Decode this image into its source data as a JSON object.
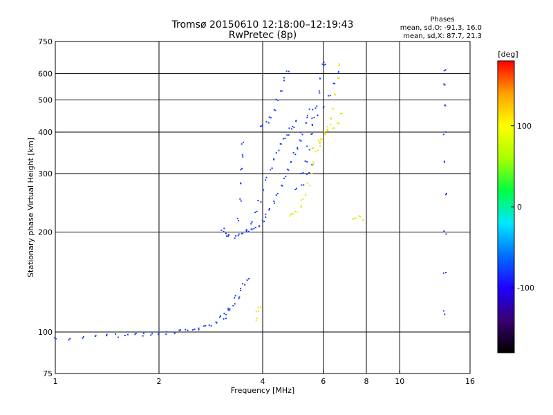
{
  "chart_data": {
    "type": "scatter",
    "title": "Tromsø 20150610 12:18:00–12:19:43",
    "subtitle": "RwPretec (8p)",
    "xlabel": "Frequency [MHz]",
    "ylabel": "Stationary phase Virtual Height [km]",
    "x_scale": "log",
    "y_scale": "log",
    "xlim": [
      1,
      16
    ],
    "ylim": [
      75,
      750
    ],
    "x_ticks": [
      1,
      2,
      4,
      6,
      8,
      10,
      16
    ],
    "x_tick_labels": [
      "1",
      "2",
      "4",
      "6",
      "8",
      "10",
      "16"
    ],
    "y_ticks": [
      75,
      100,
      200,
      300,
      400,
      500,
      600,
      750
    ],
    "y_tick_labels": [
      "75",
      "100",
      "200",
      "300",
      "400",
      "500",
      "600",
      "750"
    ],
    "x_gridlines": [
      2,
      4,
      6,
      8,
      10
    ],
    "y_gridlines": [
      100,
      200,
      300,
      400,
      500,
      600
    ],
    "grid": true,
    "phase_stats": {
      "heading": "Phases",
      "line1": "mean, sd,O: -91.3, 16.0",
      "line2": "mean, sd,X: 87.7, 21.3"
    },
    "colorbar": {
      "label": "[deg]",
      "range": [
        -180,
        180
      ],
      "ticks": [
        100,
        0,
        -100
      ],
      "tick_labels": [
        "100",
        "0",
        "-100"
      ],
      "colormap": [
        "#000000",
        "#3a0070",
        "#1e00ff",
        "#0070ff",
        "#00e8ff",
        "#00ff40",
        "#aaff00",
        "#ffff00",
        "#ffa000",
        "#ff0000"
      ]
    },
    "series": [
      {
        "color": "#1a3cff",
        "phase_deg": -100,
        "traces": [
          [
            [
              1.0,
              96
            ],
            [
              1.1,
              96
            ],
            [
              1.2,
              97
            ],
            [
              1.3,
              97
            ],
            [
              1.4,
              98
            ],
            [
              1.5,
              98
            ],
            [
              1.6,
              98
            ],
            [
              1.7,
              99
            ],
            [
              1.8,
              99
            ],
            [
              1.9,
              99
            ],
            [
              2.0,
              100
            ],
            [
              2.1,
              100
            ],
            [
              2.2,
              100
            ],
            [
              2.3,
              101
            ],
            [
              2.4,
              102
            ],
            [
              2.5,
              102
            ],
            [
              2.6,
              103
            ],
            [
              2.7,
              104
            ],
            [
              2.8,
              106
            ],
            [
              2.9,
              108
            ],
            [
              3.0,
              111
            ],
            [
              3.1,
              114
            ],
            [
              3.2,
              118
            ],
            [
              3.3,
              122
            ],
            [
              3.4,
              128
            ]
          ],
          [
            [
              3.05,
              205
            ],
            [
              3.1,
              200
            ],
            [
              3.15,
              197
            ],
            [
              3.2,
              195
            ],
            [
              3.3,
              194
            ],
            [
              3.4,
              196
            ],
            [
              3.5,
              198
            ],
            [
              3.6,
              200
            ],
            [
              3.7,
              203
            ],
            [
              3.8,
              207
            ],
            [
              3.9,
              211
            ],
            [
              4.0,
              217
            ],
            [
              4.1,
              225
            ],
            [
              4.2,
              235
            ],
            [
              4.3,
              248
            ],
            [
              4.4,
              262
            ],
            [
              4.5,
              278
            ],
            [
              4.6,
              295
            ],
            [
              4.7,
              312
            ],
            [
              4.8,
              330
            ],
            [
              4.9,
              345
            ],
            [
              5.0,
              360
            ],
            [
              5.1,
              380
            ],
            [
              5.2,
              400
            ],
            [
              5.3,
              425
            ],
            [
              5.4,
              445
            ],
            [
              5.5,
              470
            ]
          ],
          [
            [
              3.6,
              205
            ],
            [
              3.7,
              215
            ],
            [
              3.8,
              230
            ],
            [
              3.9,
              248
            ],
            [
              4.0,
              268
            ],
            [
              4.1,
              290
            ],
            [
              4.2,
              310
            ],
            [
              4.3,
              330
            ],
            [
              4.4,
              350
            ],
            [
              4.5,
              368
            ],
            [
              4.6,
              385
            ],
            [
              4.7,
              398
            ],
            [
              4.8,
              410
            ],
            [
              4.9,
              420
            ],
            [
              5.0,
              432
            ]
          ],
          [
            [
              3.9,
              420
            ],
            [
              4.0,
              422
            ],
            [
              4.1,
              430
            ],
            [
              4.2,
              445
            ],
            [
              4.3,
              470
            ],
            [
              4.4,
              500
            ],
            [
              4.5,
              540
            ],
            [
              4.6,
              580
            ],
            [
              4.7,
              610
            ]
          ],
          [
            [
              3.4,
              220
            ],
            [
              3.42,
              250
            ],
            [
              3.44,
              280
            ],
            [
              3.46,
              310
            ],
            [
              3.48,
              340
            ],
            [
              3.5,
              370
            ]
          ],
          [
            [
              5.2,
              300
            ],
            [
              5.3,
              330
            ],
            [
              5.4,
              360
            ],
            [
              5.5,
              400
            ],
            [
              5.6,
              440
            ],
            [
              5.7,
              480
            ],
            [
              5.8,
              530
            ],
            [
              5.9,
              580
            ],
            [
              6.0,
              640
            ],
            [
              6.05,
              650
            ]
          ],
          [
            [
              5.6,
              420
            ],
            [
              5.8,
              450
            ],
            [
              6.0,
              480
            ],
            [
              6.2,
              520
            ],
            [
              6.4,
              560
            ],
            [
              6.6,
              610
            ]
          ],
          [
            [
              5.0,
              270
            ],
            [
              5.2,
              280
            ],
            [
              5.4,
              300
            ],
            [
              5.6,
              320
            ]
          ],
          [
            [
              3.1,
              110
            ],
            [
              3.2,
              118
            ],
            [
              3.3,
              128
            ],
            [
              3.4,
              135
            ],
            [
              3.5,
              140
            ],
            [
              3.6,
              145
            ]
          ],
          [
            [
              13.5,
              620
            ],
            [
              13.5,
              560
            ],
            [
              13.5,
              480
            ],
            [
              13.5,
              400
            ],
            [
              13.5,
              330
            ],
            [
              13.5,
              260
            ],
            [
              13.5,
              200
            ],
            [
              13.5,
              150
            ],
            [
              13.5,
              115
            ]
          ]
        ]
      },
      {
        "color": "#e6e600",
        "phase_deg": 100,
        "traces": [
          [
            [
              4.8,
              225
            ],
            [
              4.9,
              228
            ],
            [
              5.0,
              232
            ],
            [
              5.1,
              240
            ],
            [
              5.2,
              250
            ],
            [
              5.3,
              262
            ],
            [
              5.4,
              280
            ],
            [
              5.5,
              300
            ],
            [
              5.6,
              325
            ],
            [
              5.7,
              350
            ],
            [
              5.8,
              370
            ],
            [
              5.9,
              385
            ],
            [
              6.0,
              400
            ],
            [
              6.1,
              410
            ],
            [
              6.2,
              420
            ],
            [
              6.3,
              440
            ],
            [
              6.4,
              470
            ],
            [
              6.5,
              520
            ],
            [
              6.6,
              580
            ],
            [
              6.7,
              640
            ]
          ],
          [
            [
              5.6,
              360
            ],
            [
              5.8,
              380
            ],
            [
              6.0,
              395
            ],
            [
              6.2,
              405
            ],
            [
              6.4,
              415
            ],
            [
              6.6,
              430
            ],
            [
              6.7,
              460
            ]
          ],
          [
            [
              7.3,
              222
            ],
            [
              7.5,
              222
            ],
            [
              7.7,
              221
            ]
          ],
          [
            [
              3.8,
              110
            ],
            [
              3.85,
              115
            ],
            [
              3.9,
              120
            ]
          ]
        ]
      }
    ]
  }
}
